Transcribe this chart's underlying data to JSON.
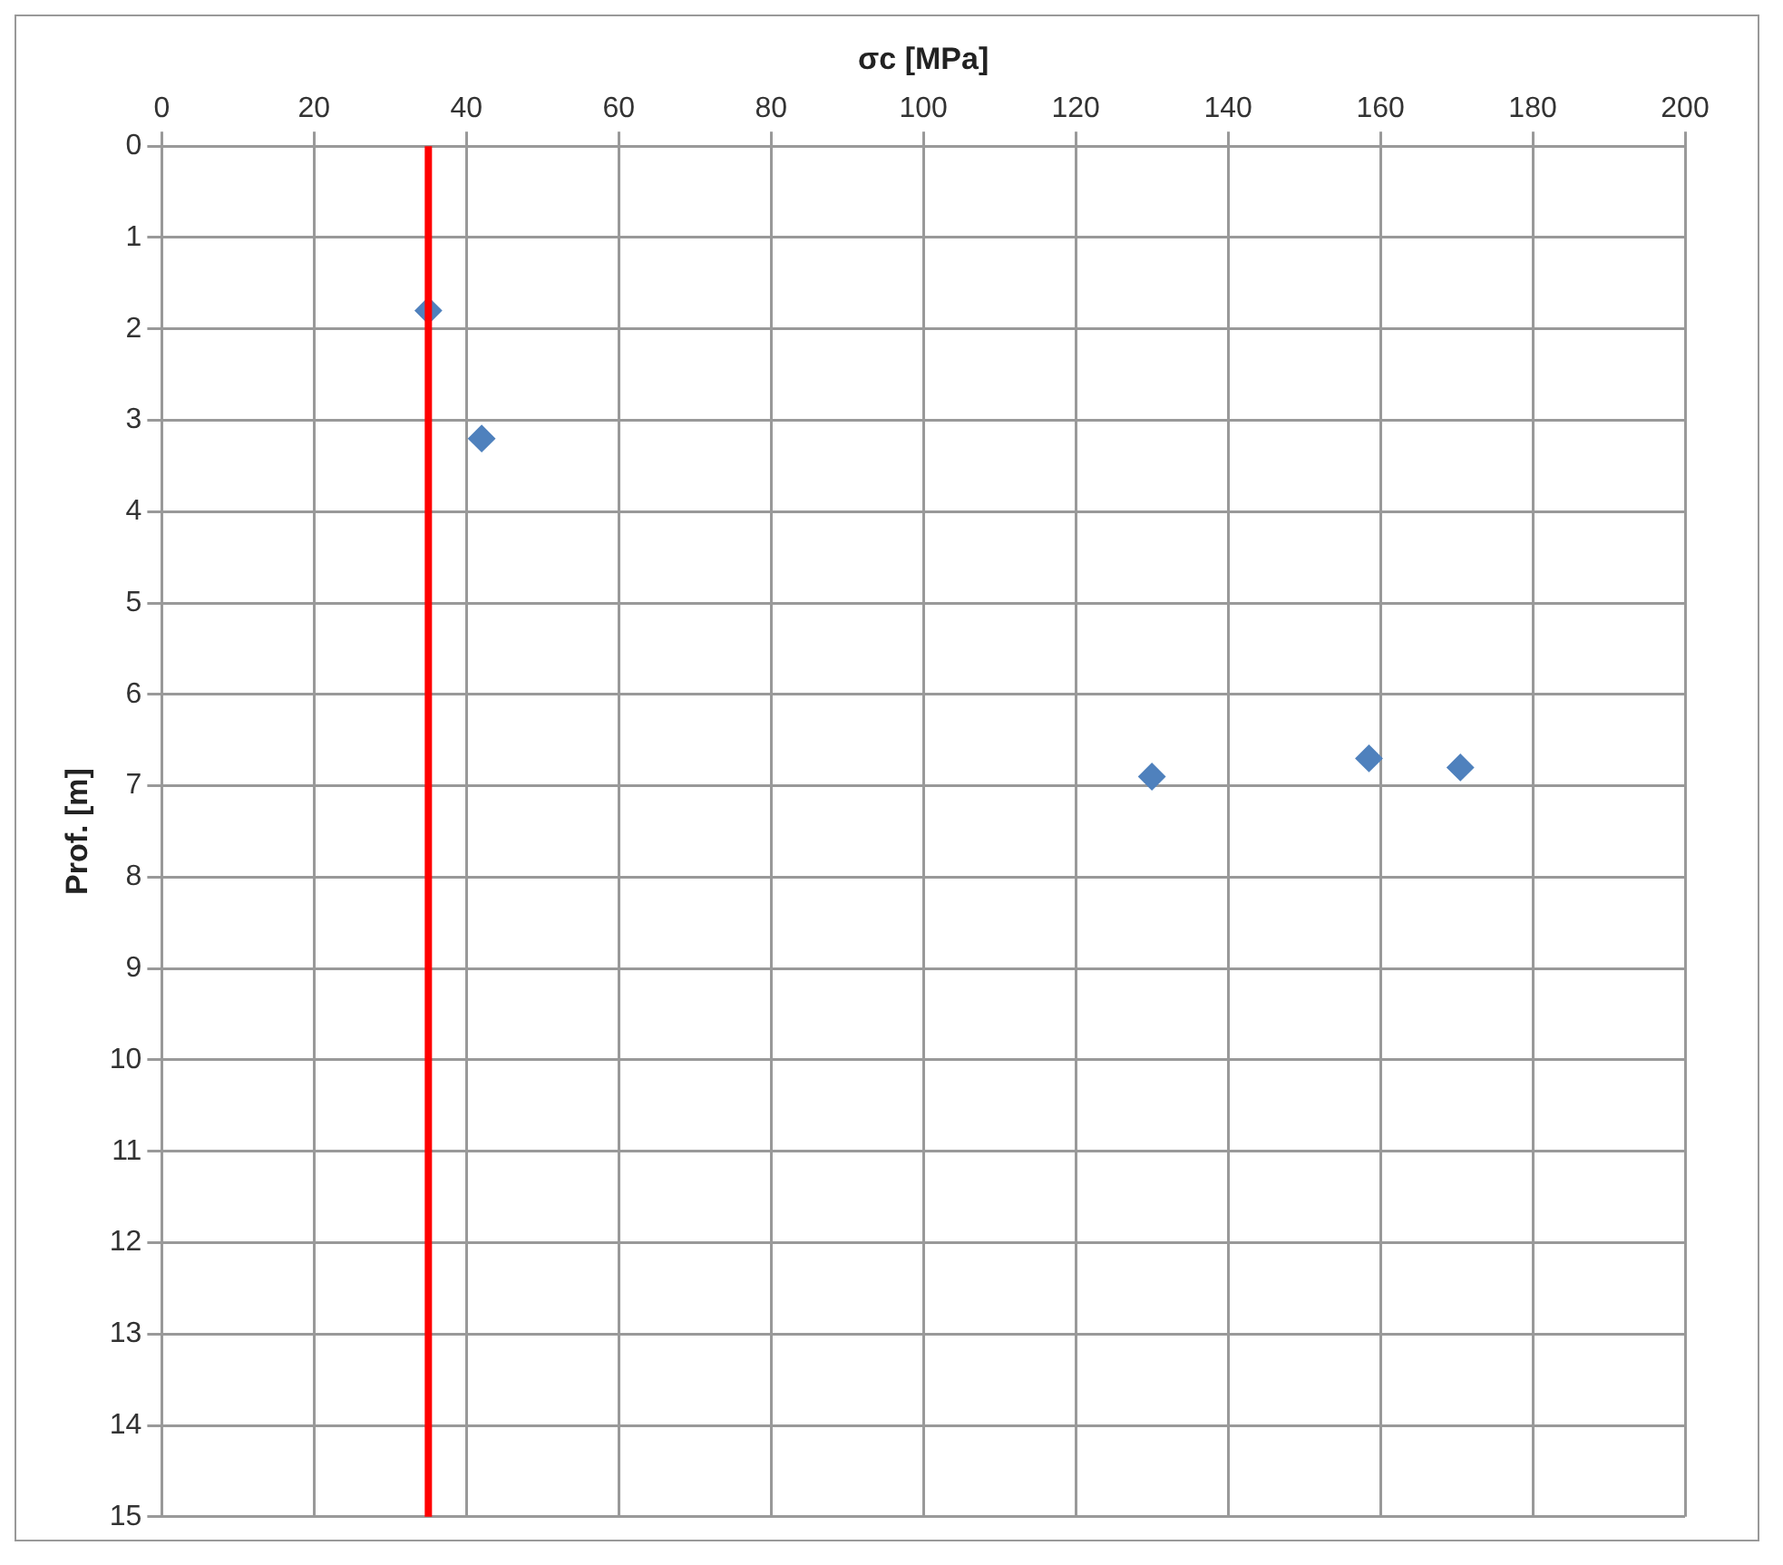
{
  "chart_data": {
    "type": "scatter",
    "xlabel": "σc [MPa]",
    "ylabel": "Prof. [m]",
    "x": [
      35,
      42,
      130,
      158.5,
      170.5
    ],
    "series": [
      {
        "color": "#4f81bd",
        "values": [
          1.8,
          3.2,
          6.9,
          6.7,
          6.8
        ]
      }
    ],
    "xlim": [
      0,
      200
    ],
    "xticks": [
      0,
      20,
      40,
      60,
      80,
      100,
      120,
      140,
      160,
      180,
      200
    ],
    "ylim": [
      15,
      0
    ],
    "yticks": [
      0,
      1,
      2,
      3,
      4,
      5,
      6,
      7,
      8,
      9,
      10,
      11,
      12,
      13,
      14,
      15
    ],
    "ref_lines": [
      {
        "axis": "x",
        "value": 35,
        "color": "#ff0000"
      }
    ],
    "grid": true,
    "legend": false,
    "marker": "diamond"
  }
}
